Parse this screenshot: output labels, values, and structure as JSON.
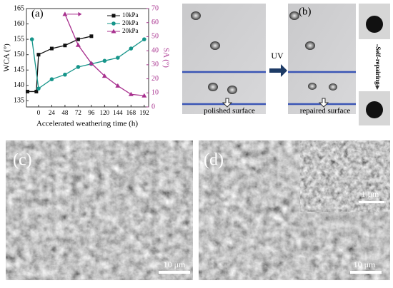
{
  "chart_data": {
    "type": "line",
    "panel_label": "(a)",
    "x_label": "Accelerated weathering time (h)",
    "y_label": "WCA (°)",
    "y2_label": "SA (°)",
    "xlim": [
      -22,
      200
    ],
    "xticks": [
      0,
      24,
      48,
      72,
      96,
      120,
      144,
      168,
      192
    ],
    "ylim": [
      133,
      165
    ],
    "yticks": [
      135,
      140,
      145,
      150,
      155,
      160,
      165
    ],
    "y2lim": [
      0,
      70
    ],
    "y2ticks": [
      0,
      10,
      20,
      30,
      40,
      50,
      60,
      70
    ],
    "series": [
      {
        "name": "10kPa",
        "color": "#111111",
        "marker": "square",
        "x": [
          -20,
          -4,
          0,
          24,
          48,
          72,
          96
        ],
        "values": [
          138,
          138,
          150,
          152,
          153,
          155,
          156
        ]
      },
      {
        "name": "20kPa",
        "color": "#16958a",
        "marker": "circle",
        "x": [
          -12,
          0,
          24,
          48,
          72,
          96,
          120,
          144,
          168,
          192
        ],
        "values": [
          155,
          139,
          142,
          143.5,
          146,
          147,
          148,
          149,
          152,
          155
        ]
      },
      {
        "name": "20kPa",
        "color": "#a8308e",
        "marker": "triangle",
        "axis": "y2",
        "x": [
          48,
          72,
          96,
          120,
          144,
          168,
          192
        ],
        "values": [
          66,
          44,
          31,
          22,
          15,
          9,
          8
        ]
      }
    ]
  },
  "panel_b": {
    "label": "(b)",
    "arrow_label": "UV",
    "left_caption": "polished surface",
    "right_caption": "repaired surface",
    "side_label": "Self-repairing"
  },
  "panel_c": {
    "label": "(c)",
    "scale_bar": "10 μm"
  },
  "panel_d": {
    "label": "(d)",
    "scale_bar": "10 μm",
    "inset_scale_bar": "1 μm"
  }
}
